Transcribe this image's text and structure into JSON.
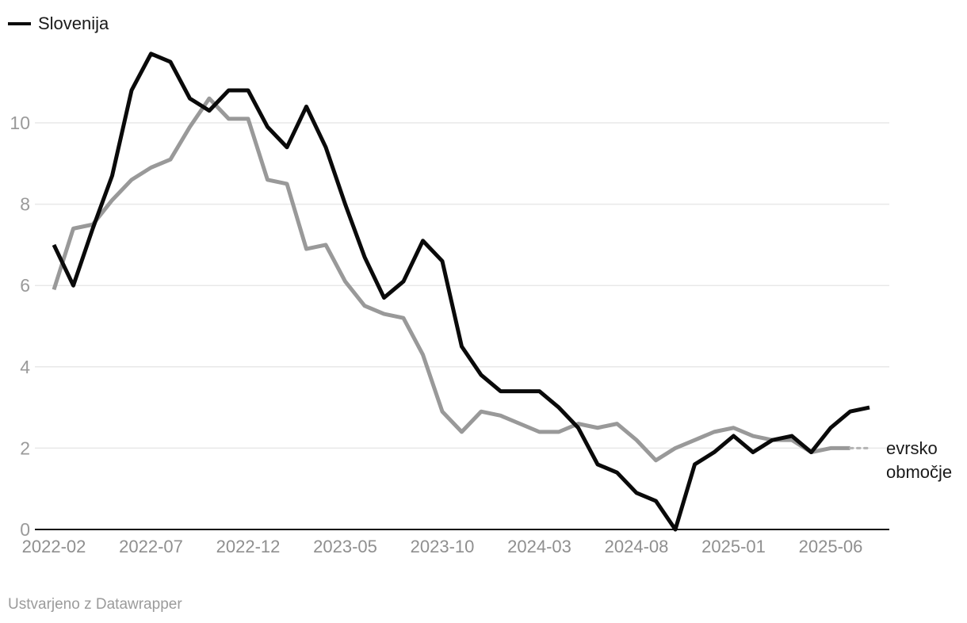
{
  "legend": {
    "items": [
      {
        "label": "Slovenija",
        "color": "#0a0a0a"
      }
    ]
  },
  "chart_data": {
    "type": "line",
    "title": "",
    "xlabel": "",
    "ylabel": "",
    "x_start": "2022-02",
    "x_end": "2025-08",
    "frequency": "monthly",
    "x_tick_labels": [
      "2022-02",
      "2022-07",
      "2022-12",
      "2023-05",
      "2023-10",
      "2024-03",
      "2024-08",
      "2025-01",
      "2025-06"
    ],
    "x_tick_month_index": [
      0,
      5,
      10,
      15,
      20,
      25,
      30,
      35,
      40
    ],
    "y_ticks": [
      0,
      2,
      4,
      6,
      8,
      10
    ],
    "ylim": [
      0,
      12
    ],
    "grid": "horizontal",
    "legend_position": "top-left",
    "colors": {
      "slovenija_line": "#0a0a0a",
      "evrsko_line": "#999999",
      "evrsko_dashed_tail": "#b3b3b3",
      "gridline": "#e8e8e8",
      "axis": "#111111"
    },
    "series": [
      {
        "name": "Slovenija",
        "color": "#0a0a0a",
        "style": "solid",
        "values": [
          7.0,
          6.0,
          7.4,
          8.7,
          10.8,
          11.7,
          11.5,
          10.6,
          10.3,
          10.8,
          10.8,
          9.9,
          9.4,
          10.4,
          9.4,
          8.0,
          6.7,
          5.7,
          6.1,
          7.1,
          6.6,
          4.5,
          3.8,
          3.4,
          3.4,
          3.4,
          3.0,
          2.5,
          1.6,
          1.4,
          0.9,
          0.7,
          0.0,
          1.6,
          1.9,
          2.3,
          1.9,
          2.2,
          2.3,
          1.9,
          2.5,
          2.9,
          3.0
        ]
      },
      {
        "name": "evrsko območje",
        "color": "#999999",
        "style": "solid_with_dashed_tail",
        "dashed_from_index": 41,
        "values": [
          5.9,
          7.4,
          7.5,
          8.1,
          8.6,
          8.9,
          9.1,
          9.9,
          10.6,
          10.1,
          10.1,
          8.6,
          8.5,
          6.9,
          7.0,
          6.1,
          5.5,
          5.3,
          5.2,
          4.3,
          2.9,
          2.4,
          2.9,
          2.8,
          2.6,
          2.4,
          2.4,
          2.6,
          2.5,
          2.6,
          2.2,
          1.7,
          2.0,
          2.2,
          2.4,
          2.5,
          2.3,
          2.2,
          2.2,
          1.9,
          2.0,
          2.0,
          2.0
        ]
      }
    ],
    "right_annotation": {
      "lines": [
        "evrsko",
        "območje"
      ],
      "series": "evrsko območje"
    }
  },
  "footer": {
    "credit": "Ustvarjeno z Datawrapper"
  }
}
